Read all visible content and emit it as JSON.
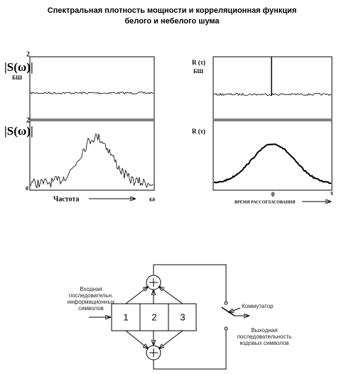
{
  "header": {
    "title": [
      "Спектральная плотность мощности и корреляционная функция",
      "белого и небелого шума"
    ]
  },
  "left_plots": {
    "top": {
      "label": "|S(ω)|",
      "subscript": "БШ",
      "max": "2"
    },
    "bottom": {
      "label": "|S(ω)|",
      "max": "2",
      "zero": "0"
    },
    "x_label": "Частота",
    "x_symbol": "ω"
  },
  "right_plots": {
    "top": {
      "label": "R (τ)",
      "subscript": "БШ"
    },
    "bottom": {
      "label": "R (τ)"
    },
    "x_zero": "0",
    "x_symbol": "τ",
    "x_label": "ВРЕМЯ  РАССОГЛАСОВАНИЯ"
  },
  "diagram": {
    "cells": [
      "1",
      "2",
      "3"
    ],
    "input": [
      "Входная",
      "последовательн.",
      "информационных",
      "символов"
    ],
    "switch": "Коммутатор",
    "output": [
      "Выходная",
      "последовательность",
      "кодовых символов"
    ]
  }
}
